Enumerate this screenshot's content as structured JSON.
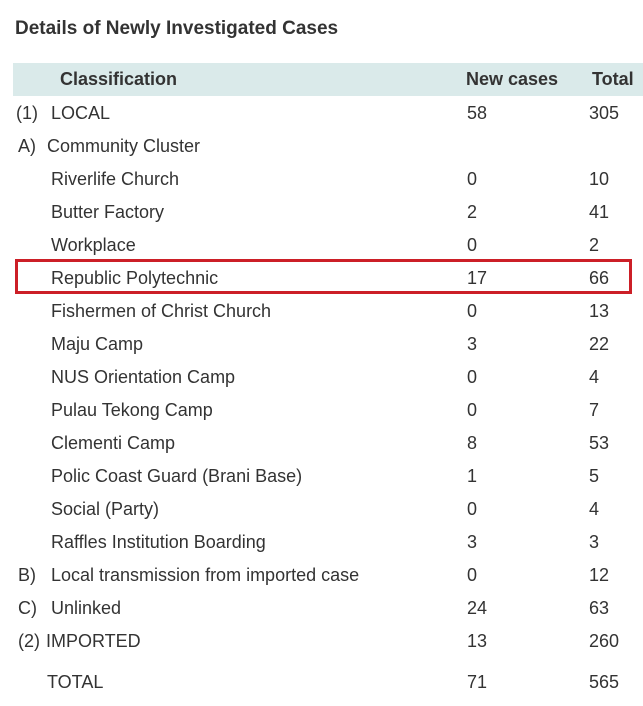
{
  "title": "Details of Newly Investigated Cases",
  "columns": {
    "classification": "Classification",
    "new_cases": "New cases",
    "total": "Total"
  },
  "rows": [
    {
      "prefix": "(1)",
      "label": "LOCAL",
      "new_cases": "58",
      "total": "305"
    },
    {
      "prefix": "A)",
      "label": "Community Cluster",
      "new_cases": "",
      "total": ""
    },
    {
      "prefix": "",
      "label": "Riverlife Church",
      "new_cases": "0",
      "total": "10"
    },
    {
      "prefix": "",
      "label": "Butter Factory",
      "new_cases": "2",
      "total": "41"
    },
    {
      "prefix": "",
      "label": "Workplace",
      "new_cases": "0",
      "total": "2"
    },
    {
      "prefix": "",
      "label": "Republic Polytechnic",
      "new_cases": "17",
      "total": "66"
    },
    {
      "prefix": "",
      "label": "Fishermen of Christ Church",
      "new_cases": "0",
      "total": "13"
    },
    {
      "prefix": "",
      "label": "Maju Camp",
      "new_cases": "3",
      "total": "22"
    },
    {
      "prefix": "",
      "label": "NUS Orientation Camp",
      "new_cases": "0",
      "total": "4"
    },
    {
      "prefix": "",
      "label": "Pulau Tekong Camp",
      "new_cases": "0",
      "total": "7"
    },
    {
      "prefix": "",
      "label": "Clementi Camp",
      "new_cases": "8",
      "total": "53"
    },
    {
      "prefix": "",
      "label": "Polic Coast Guard (Brani Base)",
      "new_cases": "1",
      "total": "5"
    },
    {
      "prefix": "",
      "label": "Social (Party)",
      "new_cases": "0",
      "total": "4"
    },
    {
      "prefix": "",
      "label": "Raffles Institution Boarding",
      "new_cases": "3",
      "total": "3"
    },
    {
      "prefix": "B)",
      "label": "Local transmission from imported case",
      "new_cases": "0",
      "total": "12"
    },
    {
      "prefix": "C)",
      "label": "Unlinked",
      "new_cases": "24",
      "total": "63"
    },
    {
      "prefix": "(2)",
      "label": "IMPORTED",
      "new_cases": "13",
      "total": "260"
    },
    {
      "prefix": "",
      "label": "TOTAL",
      "new_cases": "71",
      "total": "565"
    }
  ],
  "highlight_color": "#cc1f27",
  "header_bg": "#daeaea"
}
